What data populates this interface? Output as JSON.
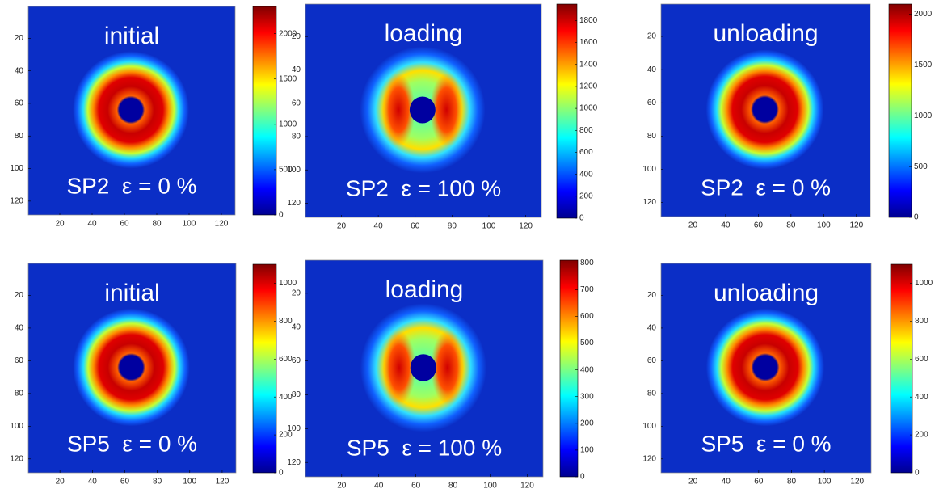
{
  "chart_data": [
    {
      "type": "heatmap",
      "title": "initial",
      "annotation": "SP2  ε = 0 %",
      "xlim": [
        0.5,
        128.5
      ],
      "ylim": [
        0.5,
        128.5
      ],
      "xticks": [
        20,
        40,
        60,
        80,
        100,
        120
      ],
      "yticks": [
        20,
        40,
        60,
        80,
        100,
        120
      ],
      "clim": [
        0,
        2300
      ],
      "cticks": [
        0,
        500,
        1000,
        1500,
        2000
      ]
    },
    {
      "type": "heatmap",
      "title": "loading",
      "annotation": "SP2  ε = 100 %",
      "xlim": [
        0.5,
        128.5
      ],
      "ylim": [
        0.5,
        128.5
      ],
      "xticks": [
        20,
        40,
        60,
        80,
        100,
        120
      ],
      "yticks": [
        20,
        40,
        60,
        80,
        100,
        120
      ],
      "clim": [
        0,
        1950
      ],
      "cticks": [
        0,
        200,
        400,
        600,
        800,
        1000,
        1200,
        1400,
        1600,
        1800
      ]
    },
    {
      "type": "heatmap",
      "title": "unloading",
      "annotation": "SP2  ε = 0 %",
      "xlim": [
        0.5,
        128.5
      ],
      "ylim": [
        0.5,
        128.5
      ],
      "xticks": [
        20,
        40,
        60,
        80,
        100,
        120
      ],
      "yticks": [
        20,
        40,
        60,
        80,
        100,
        120
      ],
      "clim": [
        0,
        2100
      ],
      "cticks": [
        0,
        500,
        1000,
        1500,
        2000
      ]
    },
    {
      "type": "heatmap",
      "title": "initial",
      "annotation": "SP5  ε = 0 %",
      "xlim": [
        0.5,
        128.5
      ],
      "ylim": [
        0.5,
        128.5
      ],
      "xticks": [
        20,
        40,
        60,
        80,
        100,
        120
      ],
      "yticks": [
        20,
        40,
        60,
        80,
        100,
        120
      ],
      "clim": [
        0,
        1100
      ],
      "cticks": [
        0,
        200,
        400,
        600,
        800,
        1000
      ]
    },
    {
      "type": "heatmap",
      "title": "loading",
      "annotation": "SP5  ε = 100 %",
      "xlim": [
        0.5,
        128.5
      ],
      "ylim": [
        0.5,
        128.5
      ],
      "xticks": [
        20,
        40,
        60,
        80,
        100,
        120
      ],
      "yticks": [
        20,
        40,
        60,
        80,
        100,
        120
      ],
      "clim": [
        0,
        810
      ],
      "cticks": [
        0,
        100,
        200,
        300,
        400,
        500,
        600,
        700,
        800
      ]
    },
    {
      "type": "heatmap",
      "title": "unloading",
      "annotation": "SP5  ε = 0 %",
      "xlim": [
        0.5,
        128.5
      ],
      "ylim": [
        0.5,
        128.5
      ],
      "xticks": [
        20,
        40,
        60,
        80,
        100,
        120
      ],
      "yticks": [
        20,
        40,
        60,
        80,
        100,
        120
      ],
      "clim": [
        0,
        1100
      ],
      "cticks": [
        0,
        200,
        400,
        600,
        800,
        1000
      ]
    }
  ]
}
